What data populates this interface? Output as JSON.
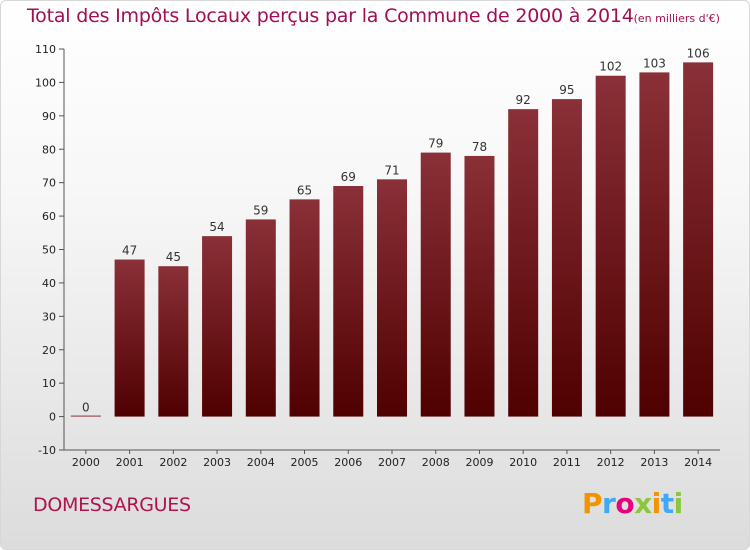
{
  "title": "Total des Impôts Locaux perçus par la Commune de 2000 à 2014",
  "subtitle": "(en milliers d'€)",
  "commune": "DOMESSARGUES",
  "brand": {
    "letters": [
      "P",
      "r",
      "o",
      "x",
      "i",
      "t",
      "i"
    ],
    "colors": [
      "#f29400",
      "#3fa9f5",
      "#e6007e",
      "#8cc63f",
      "#f29400",
      "#3fa9f5",
      "#8cc63f"
    ]
  },
  "colors": {
    "bar_top": "#8a3038",
    "bar_bottom": "#4f0000",
    "title": "#a30d53"
  },
  "chart_data": {
    "type": "bar",
    "categories": [
      "2000",
      "2001",
      "2002",
      "2003",
      "2004",
      "2005",
      "2006",
      "2007",
      "2008",
      "2009",
      "2010",
      "2011",
      "2012",
      "2013",
      "2014"
    ],
    "values": [
      0,
      47,
      45,
      54,
      59,
      65,
      69,
      71,
      79,
      78,
      92,
      95,
      102,
      103,
      106
    ],
    "ylim": [
      -10,
      110
    ],
    "yticks": [
      -10,
      0,
      10,
      20,
      30,
      40,
      50,
      60,
      70,
      80,
      90,
      100,
      110
    ],
    "grid": false,
    "xlabel": "",
    "ylabel": ""
  }
}
